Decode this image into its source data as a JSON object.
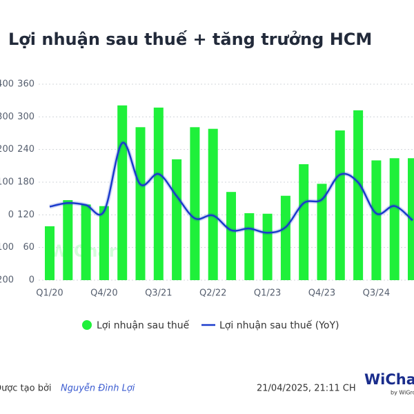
{
  "chart_data": {
    "type": "bar_line",
    "title": "Lợi nhuận sau thuế + tăng trưởng HCM",
    "categories": [
      "Q1/20",
      null,
      null,
      "Q4/20",
      null,
      null,
      "Q3/21",
      null,
      null,
      "Q2/22",
      null,
      null,
      "Q1/23",
      null,
      null,
      "Q4/23",
      null,
      null,
      "Q3/24",
      null,
      null
    ],
    "series": [
      {
        "name": "Lợi nhuận sau thuế",
        "color": "#1ff03a",
        "type": "bar",
        "values": [
          99,
          147,
          139,
          136,
          321,
          281,
          317,
          222,
          281,
          278,
          162,
          123,
          122,
          155,
          213,
          177,
          275,
          312,
          220,
          224,
          224
        ]
      },
      {
        "name": "Lợi nhuận sau thuế (YoY)",
        "color": "#1a3acc",
        "type": "line",
        "axis": "y2",
        "values": [
          25,
          36,
          30,
          11,
          220,
          93,
          125,
          57,
          -11,
          -2,
          -47,
          -42,
          -55,
          -38,
          36,
          47,
          123,
          99,
          4,
          27,
          -17
        ]
      }
    ],
    "ylim": [
      0,
      360
    ],
    "yticks": [
      0,
      60,
      120,
      180,
      240,
      300,
      360
    ],
    "y2lim": [
      -200,
      400
    ],
    "y2ticks": [
      -200,
      -100,
      0,
      100,
      200,
      300,
      400
    ],
    "grid": true,
    "legend": "bottom",
    "watermark": "WiChart",
    "footer": {
      "credit": "Được tạo bởi",
      "author": "Nguyễn Đình Lợi",
      "date": "21/04/2025, 21:11 CH",
      "logo": "WiChart",
      "logo_sub": "by WiGroup"
    }
  }
}
